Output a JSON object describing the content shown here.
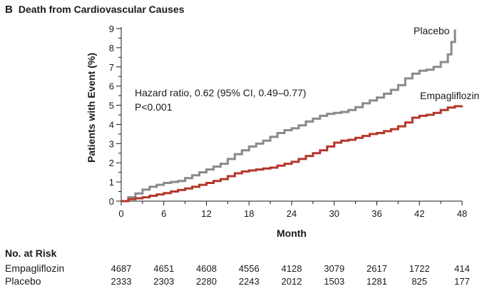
{
  "panel_letter": "B",
  "panel_title": "Death from Cardiovascular Causes",
  "chart_data": {
    "type": "line",
    "title": "Death from Cardiovascular Causes",
    "xlabel": "Month",
    "ylabel": "Patients with Event (%)",
    "xlim": [
      0,
      48
    ],
    "ylim": [
      0,
      9
    ],
    "xticks": [
      0,
      6,
      12,
      18,
      24,
      30,
      36,
      42,
      48
    ],
    "yticks": [
      0,
      1,
      2,
      3,
      4,
      5,
      6,
      7,
      8,
      9
    ],
    "annotation": [
      "Hazard ratio, 0.62 (95% CI, 0.49–0.77)",
      "P<0.001"
    ],
    "series": [
      {
        "name": "Placebo",
        "color": "#8a8a8a",
        "step": true,
        "x": [
          0,
          1,
          2,
          3,
          4,
          5,
          6,
          7,
          8,
          9,
          10,
          11,
          12,
          13,
          14,
          15,
          16,
          17,
          18,
          19,
          20,
          21,
          22,
          23,
          24,
          25,
          26,
          27,
          28,
          29,
          30,
          31,
          32,
          33,
          34,
          35,
          36,
          37,
          38,
          39,
          40,
          41,
          42,
          43,
          44,
          45,
          46,
          46.5,
          47
        ],
        "y": [
          0,
          0.2,
          0.4,
          0.6,
          0.75,
          0.85,
          0.95,
          1.0,
          1.05,
          1.2,
          1.35,
          1.5,
          1.65,
          1.8,
          1.95,
          2.2,
          2.45,
          2.65,
          2.85,
          3.0,
          3.15,
          3.35,
          3.55,
          3.7,
          3.8,
          3.95,
          4.15,
          4.3,
          4.45,
          4.55,
          4.6,
          4.65,
          4.75,
          4.9,
          5.1,
          5.25,
          5.4,
          5.6,
          5.8,
          6.05,
          6.4,
          6.65,
          6.8,
          6.85,
          7.0,
          7.25,
          7.65,
          8.3,
          8.95
        ]
      },
      {
        "name": "Empagliflozin",
        "color": "#b3372a",
        "step": true,
        "x": [
          0,
          1,
          2,
          3,
          4,
          5,
          6,
          7,
          8,
          9,
          10,
          11,
          12,
          13,
          14,
          15,
          16,
          17,
          18,
          19,
          20,
          21,
          22,
          23,
          24,
          25,
          26,
          27,
          28,
          29,
          30,
          31,
          32,
          33,
          34,
          35,
          36,
          37,
          38,
          39,
          40,
          41,
          42,
          43,
          44,
          45,
          46,
          47,
          48
        ],
        "y": [
          0,
          0.1,
          0.15,
          0.2,
          0.28,
          0.35,
          0.42,
          0.5,
          0.58,
          0.66,
          0.75,
          0.85,
          0.95,
          1.05,
          1.15,
          1.3,
          1.45,
          1.55,
          1.6,
          1.65,
          1.7,
          1.75,
          1.85,
          1.95,
          2.05,
          2.2,
          2.35,
          2.5,
          2.65,
          2.85,
          3.05,
          3.15,
          3.2,
          3.3,
          3.4,
          3.5,
          3.55,
          3.65,
          3.75,
          3.9,
          4.1,
          4.35,
          4.45,
          4.5,
          4.6,
          4.75,
          4.88,
          4.95,
          4.97
        ]
      }
    ]
  },
  "risk_table": {
    "heading": "No. at Risk",
    "rows": [
      {
        "label": "Empagliflozin",
        "values": [
          "4687",
          "4651",
          "4608",
          "4556",
          "4128",
          "3079",
          "2617",
          "1722",
          "414"
        ]
      },
      {
        "label": "Placebo",
        "values": [
          "2333",
          "2303",
          "2280",
          "2243",
          "2012",
          "1503",
          "1281",
          "825",
          "177"
        ]
      }
    ]
  }
}
